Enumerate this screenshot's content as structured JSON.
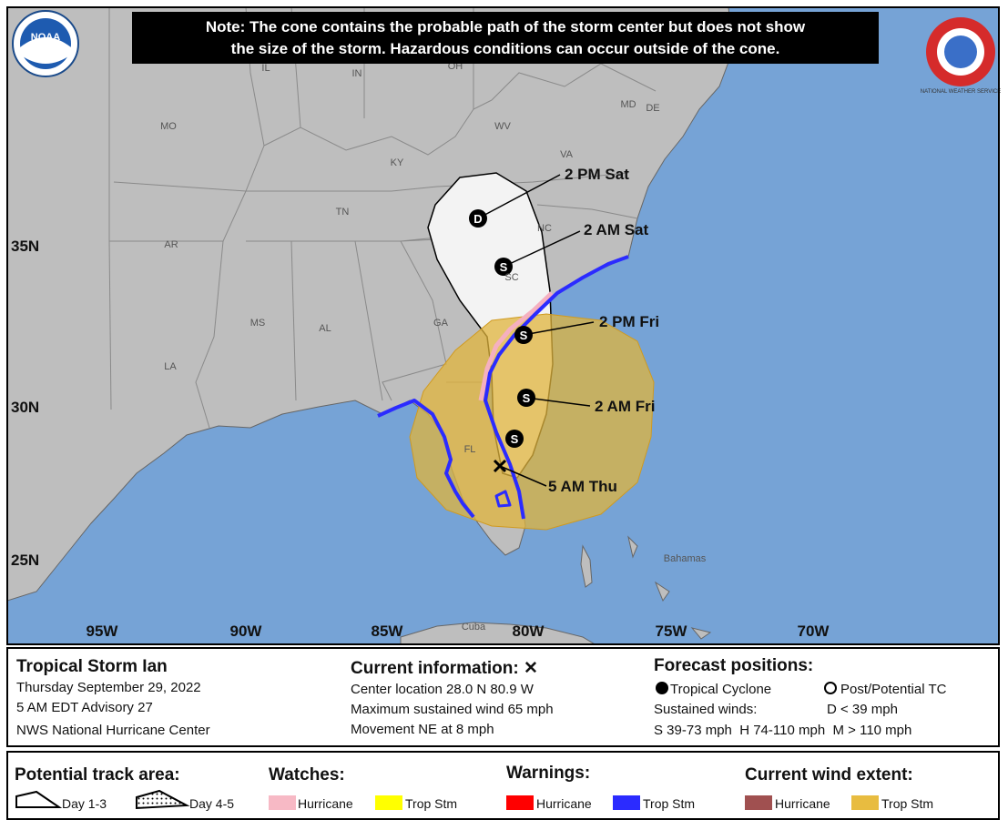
{
  "header": {
    "note": [
      "Note: The cone contains the probable path of the storm center but does not show",
      "the size of the storm. Hazardous conditions can occur outside of the cone."
    ]
  },
  "logos": {
    "noaa": "NOAA",
    "nws": "NATIONAL WEATHER SERVICE"
  },
  "map": {
    "state_labels": [
      "IL",
      "IN",
      "OH",
      "MO",
      "KY",
      "WV",
      "VA",
      "MD",
      "DE",
      "TN",
      "NC",
      "SC",
      "AR",
      "MS",
      "AL",
      "GA",
      "LA",
      "FL",
      "Bahamas",
      "Cuba"
    ],
    "lat_labels": [
      "35N",
      "30N",
      "25N"
    ],
    "lon_labels": [
      "95W",
      "90W",
      "85W",
      "80W",
      "75W",
      "70W"
    ],
    "forecast_points": [
      {
        "label": "2 PM Sat",
        "symbol": "D"
      },
      {
        "label": "2 AM Sat",
        "symbol": "S"
      },
      {
        "label": "2 PM Fri",
        "symbol": "S"
      },
      {
        "label": "2 AM Fri",
        "symbol": "S"
      },
      {
        "symbol": "S"
      }
    ],
    "current_label": "5 AM Thu"
  },
  "info": {
    "storm": {
      "name": "Tropical Storm Ian",
      "lines": [
        "Thursday September 29, 2022",
        "5 AM EDT Advisory 27",
        "NWS National Hurricane Center"
      ]
    },
    "current": {
      "title": "Current information: ✕",
      "lines": [
        "Center location 28.0 N 80.9 W",
        "Maximum sustained wind 65 mph",
        "Movement NE at 8 mph"
      ]
    },
    "forecast": {
      "title": "Forecast positions:",
      "tropical": "Tropical Cyclone",
      "post": "Post/Potential TC",
      "winds": "Sustained winds:",
      "d": "D < 39 mph",
      "scale": "S 39-73 mph  H 74-110 mph  M > 110 mph"
    }
  },
  "legend": {
    "track": {
      "title": "Potential track area:",
      "day13": "Day 1-3",
      "day45": "Day 4-5"
    },
    "watches": {
      "title": "Watches:",
      "hurricane": "Hurricane",
      "tropical": "Trop Stm"
    },
    "warnings": {
      "title": "Warnings:",
      "hurricane": "Hurricane",
      "tropical": "Trop Stm"
    },
    "wind": {
      "title": "Current wind extent:",
      "hurricane": "Hurricane",
      "tropical": "Trop Stm"
    }
  }
}
